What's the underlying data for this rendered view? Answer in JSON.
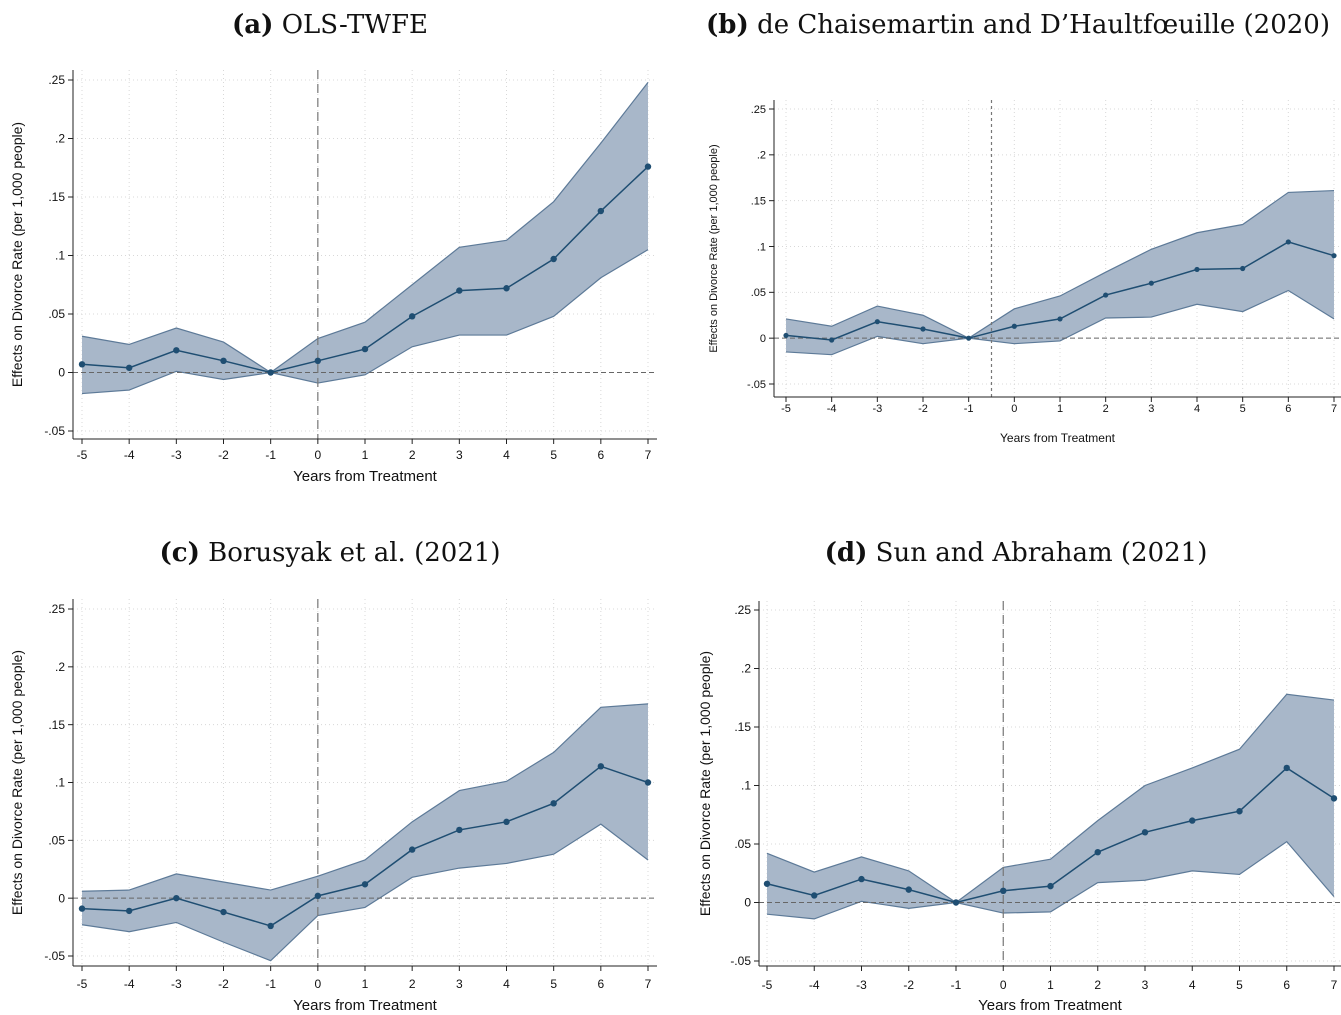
{
  "chart_data": [
    {
      "type": "line",
      "panel_label": "(a)",
      "title": "OLS-TWFE",
      "xlabel": "Years from Treatment",
      "ylabel": "Effects on Divorce Rate (per 1,000 people)",
      "x": [
        -5,
        -4,
        -3,
        -2,
        -1,
        0,
        1,
        2,
        3,
        4,
        5,
        6,
        7
      ],
      "xticks": [
        "-5",
        "-4",
        "-3",
        "-2",
        "-1",
        "0",
        "1",
        "2",
        "3",
        "4",
        "5",
        "6",
        "7"
      ],
      "yticks": [
        "-.05",
        "0",
        ".05",
        ".1",
        ".15",
        ".2",
        ".25"
      ],
      "ylim": [
        -0.05,
        0.25
      ],
      "treatment_line_x": 0,
      "grid": true,
      "series": [
        {
          "role": "estimate",
          "values": [
            0.007,
            0.004,
            0.019,
            0.01,
            0.0,
            0.01,
            0.02,
            0.048,
            0.07,
            0.072,
            0.097,
            0.138,
            0.176
          ]
        },
        {
          "role": "ci_upper",
          "values": [
            0.031,
            0.024,
            0.038,
            0.026,
            0.0,
            0.029,
            0.043,
            0.075,
            0.107,
            0.113,
            0.146,
            0.196,
            0.248
          ]
        },
        {
          "role": "ci_lower",
          "values": [
            -0.018,
            -0.015,
            0.001,
            -0.006,
            0.0,
            -0.009,
            -0.002,
            0.022,
            0.032,
            0.032,
            0.048,
            0.081,
            0.105
          ]
        }
      ]
    },
    {
      "type": "line",
      "panel_label": "(b)",
      "title": "de Chaisemartin and D’Haultfœuille (2020)",
      "xlabel": "Years from Treatment",
      "ylabel": "Effects on Divorce Rate (per 1,000 people)",
      "x": [
        -5,
        -4,
        -3,
        -2,
        -1,
        0,
        1,
        2,
        3,
        4,
        5,
        6,
        7
      ],
      "xticks": [
        "-5",
        "-4",
        "-3",
        "-2",
        "-1",
        "0",
        "1",
        "2",
        "3",
        "4",
        "5",
        "6",
        "7"
      ],
      "yticks": [
        "-.05",
        "0",
        ".05",
        ".1",
        ".15",
        ".2",
        ".25"
      ],
      "ylim": [
        -0.05,
        0.25
      ],
      "treatment_line_x": -0.5,
      "grid": true,
      "series": [
        {
          "role": "estimate",
          "values": [
            0.003,
            -0.002,
            0.018,
            0.01,
            0.0,
            0.013,
            0.021,
            0.047,
            0.06,
            0.075,
            0.076,
            0.105,
            0.09
          ]
        },
        {
          "role": "ci_upper",
          "values": [
            0.021,
            0.013,
            0.035,
            0.025,
            0.0,
            0.032,
            0.046,
            0.072,
            0.097,
            0.115,
            0.124,
            0.159,
            0.161
          ]
        },
        {
          "role": "ci_lower",
          "values": [
            -0.015,
            -0.018,
            0.002,
            -0.006,
            0.0,
            -0.006,
            -0.003,
            0.022,
            0.023,
            0.037,
            0.029,
            0.052,
            0.021
          ]
        }
      ]
    },
    {
      "type": "line",
      "panel_label": "(c)",
      "title": "Borusyak et al. (2021)",
      "xlabel": "Years from Treatment",
      "ylabel": "Effects on Divorce Rate (per 1,000 people)",
      "x": [
        -5,
        -4,
        -3,
        -2,
        -1,
        0,
        1,
        2,
        3,
        4,
        5,
        6,
        7
      ],
      "xticks": [
        "-5",
        "-4",
        "-3",
        "-2",
        "-1",
        "0",
        "1",
        "2",
        "3",
        "4",
        "5",
        "6",
        "7"
      ],
      "yticks": [
        "-.05",
        "0",
        ".05",
        ".1",
        ".15",
        ".2",
        ".25"
      ],
      "ylim": [
        -0.05,
        0.25
      ],
      "treatment_line_x": 0,
      "grid": true,
      "series": [
        {
          "role": "estimate",
          "values": [
            -0.009,
            -0.011,
            0.0,
            -0.012,
            -0.024,
            0.002,
            0.012,
            0.042,
            0.059,
            0.066,
            0.082,
            0.114,
            0.1
          ]
        },
        {
          "role": "ci_upper",
          "values": [
            0.006,
            0.007,
            0.021,
            0.014,
            0.007,
            0.019,
            0.033,
            0.066,
            0.093,
            0.101,
            0.126,
            0.165,
            0.168
          ]
        },
        {
          "role": "ci_lower",
          "values": [
            -0.023,
            -0.029,
            -0.021,
            -0.038,
            -0.054,
            -0.015,
            -0.008,
            0.018,
            0.026,
            0.03,
            0.038,
            0.064,
            0.033
          ]
        }
      ]
    },
    {
      "type": "line",
      "panel_label": "(d)",
      "title": "Sun and Abraham (2021)",
      "xlabel": "Years from Treatment",
      "ylabel": "Effects on Divorce Rate (per 1,000 people)",
      "x": [
        -5,
        -4,
        -3,
        -2,
        -1,
        0,
        1,
        2,
        3,
        4,
        5,
        6,
        7
      ],
      "xticks": [
        "-5",
        "-4",
        "-3",
        "-2",
        "-1",
        "0",
        "1",
        "2",
        "3",
        "4",
        "5",
        "6",
        "7"
      ],
      "yticks": [
        "-.05",
        "0",
        ".05",
        ".1",
        ".15",
        ".2",
        ".25"
      ],
      "ylim": [
        -0.05,
        0.25
      ],
      "treatment_line_x": 0,
      "grid": true,
      "series": [
        {
          "role": "estimate",
          "values": [
            0.016,
            0.006,
            0.02,
            0.011,
            0.0,
            0.01,
            0.014,
            0.043,
            0.06,
            0.07,
            0.078,
            0.115,
            0.089
          ]
        },
        {
          "role": "ci_upper",
          "values": [
            0.042,
            0.026,
            0.039,
            0.027,
            0.0,
            0.03,
            0.037,
            0.07,
            0.1,
            0.115,
            0.131,
            0.178,
            0.173
          ]
        },
        {
          "role": "ci_lower",
          "values": [
            -0.01,
            -0.014,
            0.001,
            -0.005,
            0.0,
            -0.009,
            -0.008,
            0.017,
            0.019,
            0.027,
            0.024,
            0.052,
            0.005
          ]
        }
      ]
    }
  ],
  "colors": {
    "line": "#1f4e72",
    "band_fill": "#a8b7c9",
    "band_edge": "#5d7a98",
    "grid": "#d8d8d8",
    "zero_line": "#666666",
    "treatment_line": "#777777",
    "axis": "#222222"
  }
}
